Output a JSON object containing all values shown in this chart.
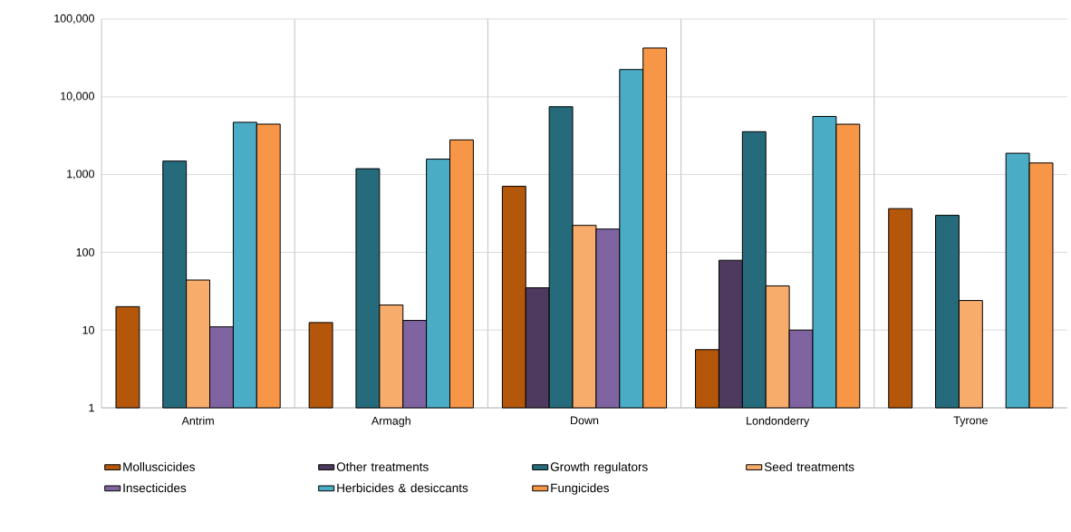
{
  "chart_data": {
    "type": "bar",
    "log": "y",
    "grid": true,
    "legend": "bottom",
    "categories": [
      "Antrim",
      "Armagh",
      "Down",
      "Londonderry",
      "Tyrone"
    ],
    "ylim": [
      1,
      100000
    ],
    "yticks": [
      {
        "value": 1,
        "label": "1"
      },
      {
        "value": 10,
        "label": "10"
      },
      {
        "value": 100,
        "label": "100"
      },
      {
        "value": 1000,
        "label": "1,000"
      },
      {
        "value": 10000,
        "label": "10,000"
      },
      {
        "value": 100000,
        "label": "100,000"
      }
    ],
    "series": [
      {
        "name": "Molluscicides",
        "color": "#b5570a",
        "values": [
          20,
          12.5,
          706,
          5.6,
          365
        ]
      },
      {
        "name": "Other treatments",
        "color": "#4f3a5f",
        "values": [
          null,
          null,
          35,
          79,
          null
        ]
      },
      {
        "name": "Growth regulators",
        "color": "#256b7b",
        "values": [
          1490,
          1190,
          7450,
          3560,
          299
        ]
      },
      {
        "name": "Seed treatments",
        "color": "#f8ac6c",
        "values": [
          44,
          21,
          222,
          37,
          24
        ]
      },
      {
        "name": "Insecticides",
        "color": "#8064a2",
        "values": [
          11,
          13.3,
          199,
          10,
          null
        ]
      },
      {
        "name": "Herbicides & desiccants",
        "color": "#4bacc6",
        "values": [
          4700,
          1580,
          22400,
          5590,
          1880
        ]
      },
      {
        "name": "Fungicides",
        "color": "#f79646",
        "values": [
          4450,
          2790,
          42400,
          4440,
          1410
        ]
      }
    ]
  }
}
